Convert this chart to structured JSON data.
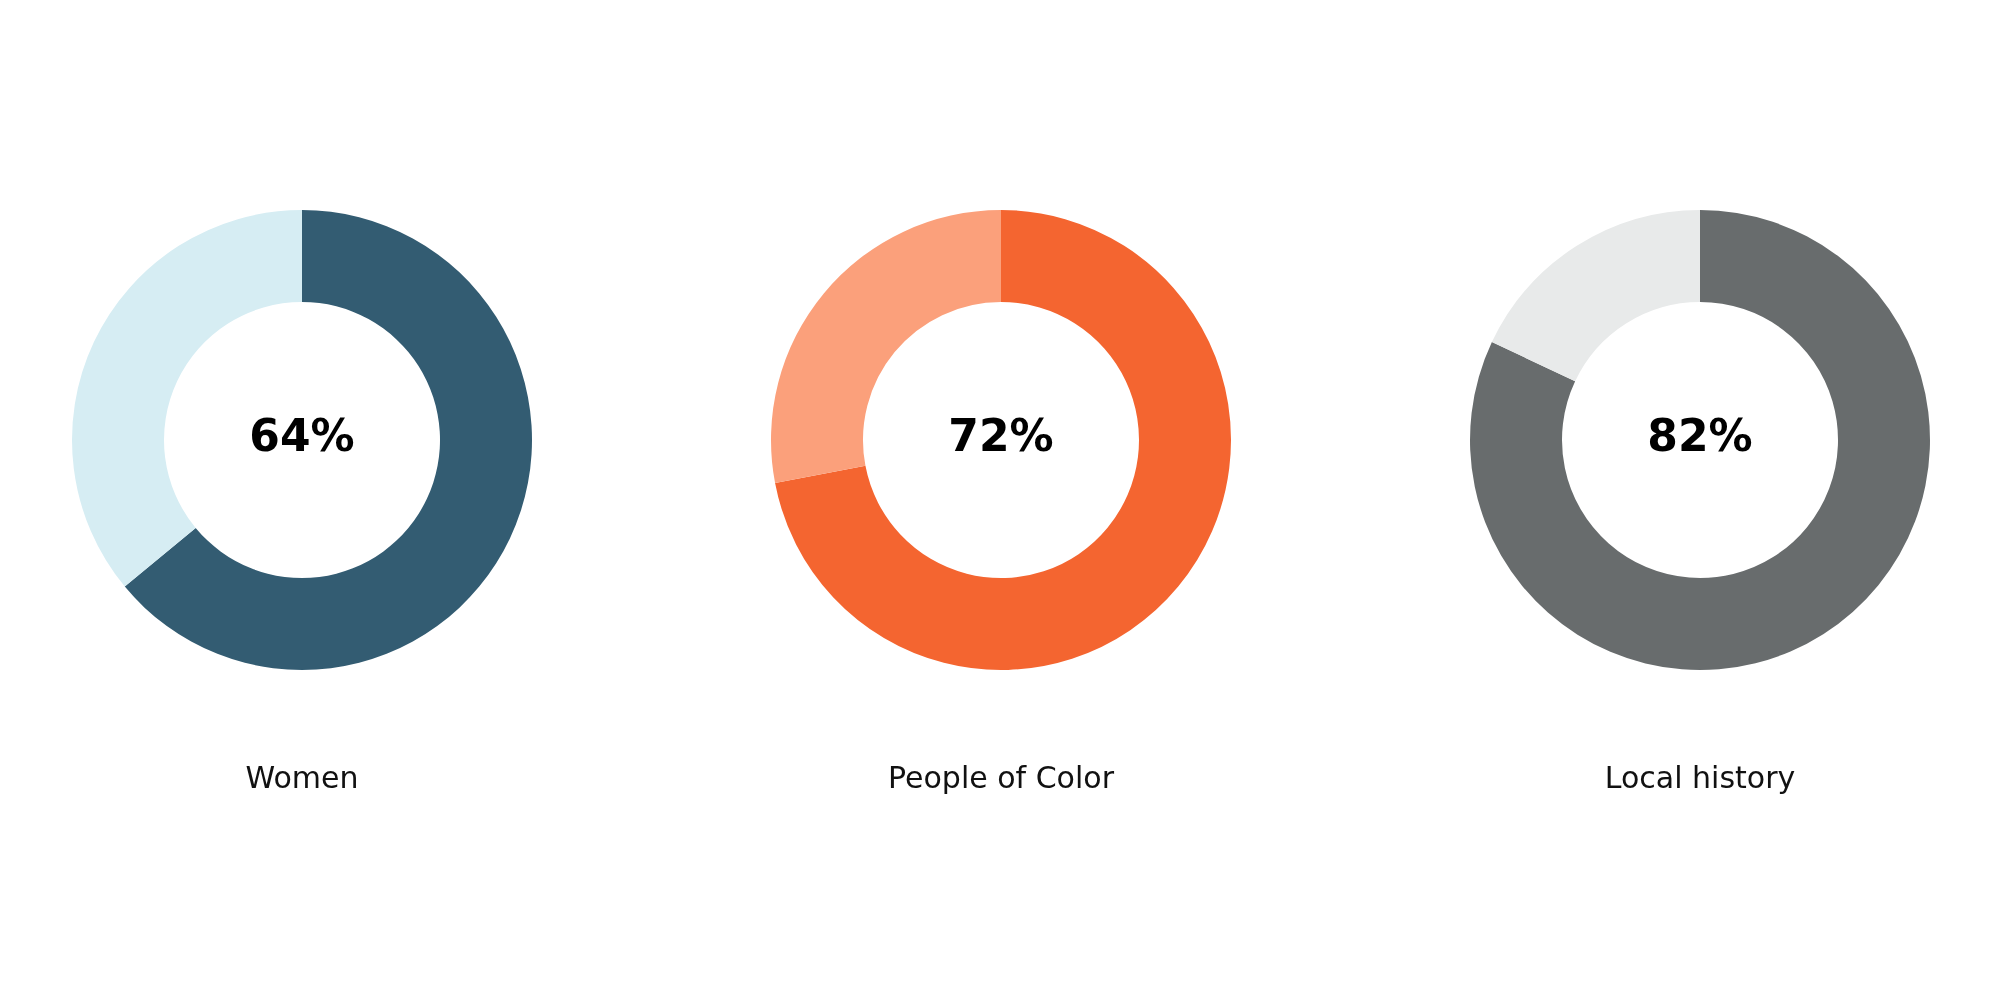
{
  "chart_data": [
    {
      "type": "donut",
      "title": "Women",
      "categories": [
        null,
        null
      ],
      "values": [
        64,
        36
      ],
      "colors": [
        "#335c72",
        "#d6edf3"
      ],
      "value_labels": [
        "64%",
        null
      ],
      "legend": false
    },
    {
      "type": "donut",
      "title": "People of Color",
      "categories": [
        null,
        null
      ],
      "values": [
        72,
        28
      ],
      "colors": [
        "#f46530",
        "#fba07b"
      ],
      "value_labels": [
        "72%",
        null
      ],
      "legend": false
    },
    {
      "type": "donut",
      "title": "Local history",
      "categories": [
        null,
        null
      ],
      "values": [
        82,
        18
      ],
      "colors": [
        "#686c6d",
        "#e8eaea"
      ],
      "value_labels": [
        "82%",
        null
      ],
      "legend": false
    }
  ]
}
